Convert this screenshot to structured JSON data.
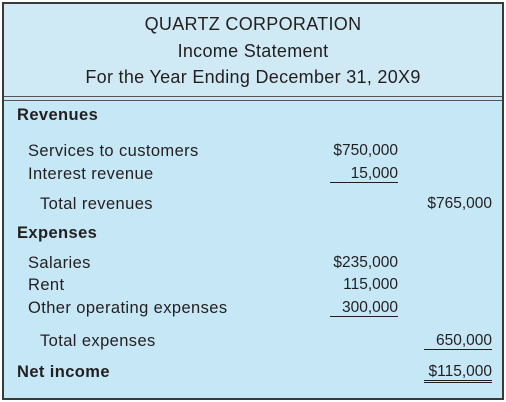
{
  "header": {
    "company": "QUARTZ CORPORATION",
    "statement": "Income Statement",
    "period": "For the Year Ending December 31, 20X9"
  },
  "sections": [
    {
      "title": "Revenues",
      "items": [
        {
          "label": "Services to customers",
          "amount": "$750,000"
        },
        {
          "label": "Interest revenue",
          "amount": "15,000"
        }
      ],
      "total": {
        "label": "Total revenues",
        "amount": "$765,000"
      }
    },
    {
      "title": "Expenses",
      "items": [
        {
          "label": "Salaries",
          "amount": "$235,000"
        },
        {
          "label": "Rent",
          "amount": "115,000"
        },
        {
          "label": "Other operating expenses",
          "amount": "300,000"
        }
      ],
      "total": {
        "label": "Total expenses",
        "amount": "650,000"
      }
    }
  ],
  "net_income": {
    "label": "Net income",
    "amount": "$115,000"
  }
}
